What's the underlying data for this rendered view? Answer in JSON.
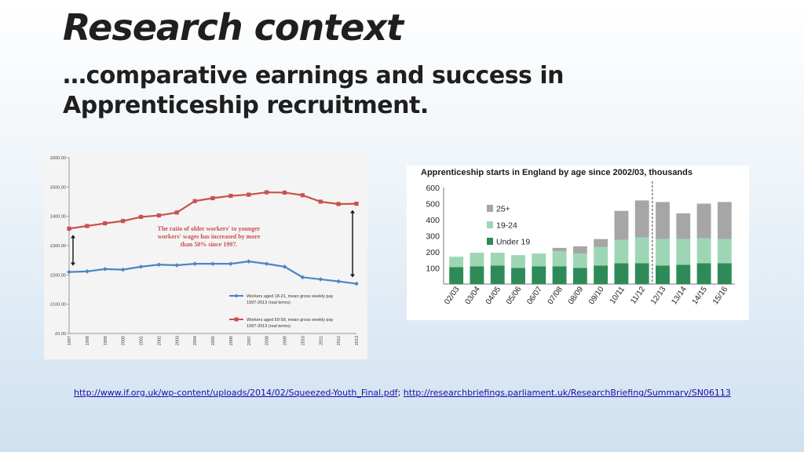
{
  "slide": {
    "title": "Research context",
    "subtitle": "…comparative earnings and success in Apprenticeship recruitment.",
    "links": [
      "http://www.if.org.uk/wp-content/uploads/2014/02/Squeezed-Youth_Final.pdf",
      "http://researchbriefings.parliament.uk/ResearchBriefing/Summary/SN06113"
    ],
    "link_separator": ";"
  },
  "chart_data": [
    {
      "type": "line",
      "title": "",
      "x": [
        "1997",
        "1998",
        "1999",
        "2000",
        "2001",
        "2002",
        "2003",
        "2004",
        "2005",
        "2006",
        "2007",
        "2008",
        "2009",
        "2010",
        "2011",
        "2012",
        "2013"
      ],
      "y_ticks": [
        "£0.00",
        "£100.00",
        "£200.00",
        "£300.00",
        "£400.00",
        "£500.00",
        "£600.00"
      ],
      "ylim": [
        0,
        600
      ],
      "grid": false,
      "series": [
        {
          "name": "Workers aged 18-21, mean gross weekly pay 1997-2013 (real terms)",
          "color": "#4a86c4",
          "values": [
            210,
            212,
            220,
            218,
            228,
            235,
            233,
            238,
            238,
            238,
            246,
            238,
            228,
            192,
            185,
            178,
            170
          ]
        },
        {
          "name": "Workers aged 50-59, mean gross weekly pay 1997-2013 (real terms)",
          "color": "#c9504d",
          "values": [
            358,
            367,
            376,
            384,
            398,
            403,
            413,
            452,
            462,
            470,
            474,
            482,
            481,
            472,
            450,
            442,
            443
          ]
        }
      ],
      "annotation": "The ratio of older workers' to younger workers' wages has increased by more than 50% since 1997.",
      "annotation_color": "#c9504d",
      "legend_position": "bottom-right"
    },
    {
      "type": "bar",
      "stacked": true,
      "title": "Apprenticeship starts in England by age since 2002/03, thousands",
      "categories": [
        "02/03",
        "03/04",
        "04/05",
        "05/06",
        "06/07",
        "07/08",
        "08/09",
        "09/10",
        "10/11",
        "11/12",
        "12/13",
        "13/14",
        "14/15",
        "15/16"
      ],
      "y_ticks": [
        "100",
        "200",
        "300",
        "400",
        "500",
        "600"
      ],
      "ylim": [
        0,
        600
      ],
      "legend_position": "top-left",
      "divider_after": "11/12",
      "series": [
        {
          "name": "Under 19",
          "color": "#2e8b57",
          "values": [
            105,
            110,
            115,
            100,
            110,
            110,
            100,
            115,
            130,
            130,
            115,
            120,
            130,
            130
          ]
        },
        {
          "name": "19-24",
          "color": "#9ed6b5",
          "values": [
            65,
            85,
            80,
            80,
            80,
            95,
            90,
            115,
            145,
            160,
            165,
            160,
            155,
            150
          ]
        },
        {
          "name": "25+",
          "color": "#a6a6a6",
          "values": [
            0,
            0,
            0,
            0,
            0,
            20,
            45,
            50,
            180,
            230,
            230,
            160,
            215,
            230
          ]
        }
      ]
    }
  ]
}
